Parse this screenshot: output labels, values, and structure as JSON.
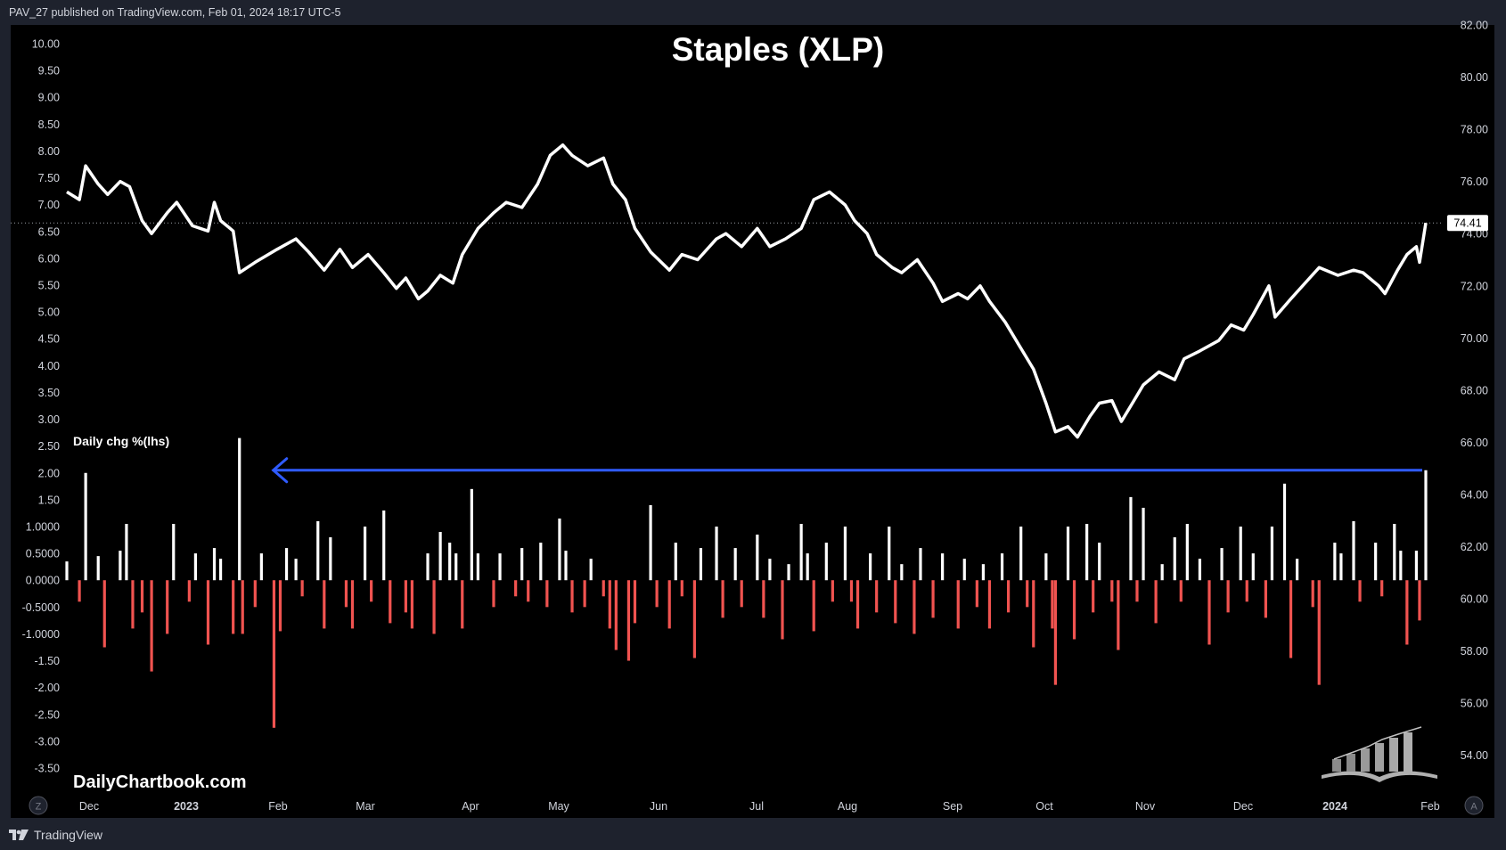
{
  "header": {
    "publish_line": "PAV_27 published on TradingView.com, Feb 01, 2024 18:17 UTC-5"
  },
  "footer": {
    "brand": "TradingView",
    "watermark": "DailyChartbook.com"
  },
  "corner_buttons": {
    "left": "Z",
    "right": "A"
  },
  "colors": {
    "background": "#000000",
    "frame": "#1e222d",
    "price_line": "#ffffff",
    "bar_up": "#ffffff",
    "bar_down": "#f05350",
    "arrow": "#2f5bff",
    "text": "#d1d4dc"
  },
  "chart_data": {
    "type": "line",
    "title": "Staples (XLP)",
    "subtitle": "",
    "x_ticks": [
      "Dec",
      "2023",
      "Feb",
      "Mar",
      "Apr",
      "May",
      "Jun",
      "Jul",
      "Aug",
      "Sep",
      "Oct",
      "Nov",
      "Dec",
      "2024",
      "Feb"
    ],
    "x_range": [
      "2022-11-25",
      "2024-02-01"
    ],
    "right_axis": {
      "ylim": [
        53.0,
        82.0
      ],
      "ticks": [
        "54.00",
        "56.00",
        "58.00",
        "60.00",
        "62.00",
        "64.00",
        "66.00",
        "68.00",
        "70.00",
        "72.00",
        "74.00",
        "76.00",
        "78.00",
        "80.00",
        "82.00"
      ]
    },
    "left_axis": {
      "ylim": [
        -3.5,
        10.0
      ],
      "ticks": [
        "10.00",
        "9.50",
        "9.00",
        "8.50",
        "8.00",
        "7.50",
        "7.00",
        "6.50",
        "6.00",
        "5.50",
        "5.00",
        "4.50",
        "4.00",
        "3.50",
        "3.00",
        "2.50",
        "2.00",
        "1.50",
        "1.0000",
        "0.5000",
        "0.0000",
        "-0.5000",
        "-1.0000",
        "-1.50",
        "-2.00",
        "-2.50",
        "-3.00",
        "-3.50"
      ]
    },
    "last_price": {
      "value": 74.41,
      "label": "74.41"
    },
    "series": [
      {
        "name": "Staples (XLP)",
        "axis": "right",
        "points": [
          [
            "2022-11-25",
            75.6
          ],
          [
            "2022-11-29",
            75.3
          ],
          [
            "2022-12-01",
            76.6
          ],
          [
            "2022-12-05",
            75.9
          ],
          [
            "2022-12-08",
            75.5
          ],
          [
            "2022-12-12",
            76.0
          ],
          [
            "2022-12-15",
            75.8
          ],
          [
            "2022-12-19",
            74.5
          ],
          [
            "2022-12-22",
            74.0
          ],
          [
            "2022-12-27",
            74.8
          ],
          [
            "2022-12-30",
            75.2
          ],
          [
            "2023-01-04",
            74.3
          ],
          [
            "2023-01-09",
            74.1
          ],
          [
            "2023-01-11",
            75.2
          ],
          [
            "2023-01-13",
            74.5
          ],
          [
            "2023-01-17",
            74.1
          ],
          [
            "2023-01-19",
            72.5
          ],
          [
            "2023-01-24",
            72.9
          ],
          [
            "2023-01-31",
            73.4
          ],
          [
            "2023-02-06",
            73.8
          ],
          [
            "2023-02-10",
            73.3
          ],
          [
            "2023-02-15",
            72.6
          ],
          [
            "2023-02-20",
            73.4
          ],
          [
            "2023-02-24",
            72.7
          ],
          [
            "2023-03-01",
            73.2
          ],
          [
            "2023-03-06",
            72.5
          ],
          [
            "2023-03-10",
            71.9
          ],
          [
            "2023-03-13",
            72.3
          ],
          [
            "2023-03-17",
            71.5
          ],
          [
            "2023-03-20",
            71.8
          ],
          [
            "2023-03-24",
            72.4
          ],
          [
            "2023-03-28",
            72.1
          ],
          [
            "2023-03-31",
            73.2
          ],
          [
            "2023-04-05",
            74.2
          ],
          [
            "2023-04-10",
            74.8
          ],
          [
            "2023-04-14",
            75.2
          ],
          [
            "2023-04-19",
            75.0
          ],
          [
            "2023-04-24",
            75.9
          ],
          [
            "2023-04-28",
            77.0
          ],
          [
            "2023-05-02",
            77.4
          ],
          [
            "2023-05-05",
            77.0
          ],
          [
            "2023-05-10",
            76.6
          ],
          [
            "2023-05-15",
            76.9
          ],
          [
            "2023-05-18",
            75.9
          ],
          [
            "2023-05-22",
            75.3
          ],
          [
            "2023-05-25",
            74.2
          ],
          [
            "2023-05-30",
            73.3
          ],
          [
            "2023-06-05",
            72.6
          ],
          [
            "2023-06-09",
            73.2
          ],
          [
            "2023-06-14",
            73.0
          ],
          [
            "2023-06-20",
            73.8
          ],
          [
            "2023-06-23",
            74.0
          ],
          [
            "2023-06-28",
            73.5
          ],
          [
            "2023-07-03",
            74.2
          ],
          [
            "2023-07-07",
            73.5
          ],
          [
            "2023-07-12",
            73.8
          ],
          [
            "2023-07-17",
            74.2
          ],
          [
            "2023-07-21",
            75.3
          ],
          [
            "2023-07-26",
            75.6
          ],
          [
            "2023-07-31",
            75.1
          ],
          [
            "2023-08-03",
            74.5
          ],
          [
            "2023-08-07",
            74.0
          ],
          [
            "2023-08-10",
            73.2
          ],
          [
            "2023-08-15",
            72.7
          ],
          [
            "2023-08-18",
            72.5
          ],
          [
            "2023-08-23",
            73.0
          ],
          [
            "2023-08-28",
            72.1
          ],
          [
            "2023-08-31",
            71.4
          ],
          [
            "2023-09-05",
            71.7
          ],
          [
            "2023-09-08",
            71.5
          ],
          [
            "2023-09-12",
            72.0
          ],
          [
            "2023-09-15",
            71.4
          ],
          [
            "2023-09-20",
            70.6
          ],
          [
            "2023-09-25",
            69.6
          ],
          [
            "2023-09-29",
            68.8
          ],
          [
            "2023-10-03",
            67.5
          ],
          [
            "2023-10-06",
            66.4
          ],
          [
            "2023-10-10",
            66.6
          ],
          [
            "2023-10-13",
            66.2
          ],
          [
            "2023-10-17",
            67.0
          ],
          [
            "2023-10-20",
            67.5
          ],
          [
            "2023-10-24",
            67.6
          ],
          [
            "2023-10-27",
            66.8
          ],
          [
            "2023-10-31",
            67.6
          ],
          [
            "2023-11-03",
            68.2
          ],
          [
            "2023-11-08",
            68.7
          ],
          [
            "2023-11-13",
            68.4
          ],
          [
            "2023-11-16",
            69.2
          ],
          [
            "2023-11-21",
            69.5
          ],
          [
            "2023-11-27",
            69.9
          ],
          [
            "2023-12-01",
            70.5
          ],
          [
            "2023-12-05",
            70.3
          ],
          [
            "2023-12-08",
            70.9
          ],
          [
            "2023-12-13",
            72.0
          ],
          [
            "2023-12-15",
            70.8
          ],
          [
            "2023-12-20",
            71.5
          ],
          [
            "2023-12-26",
            72.3
          ],
          [
            "2023-12-29",
            72.7
          ],
          [
            "2024-01-04",
            72.4
          ],
          [
            "2024-01-09",
            72.6
          ],
          [
            "2024-01-12",
            72.5
          ],
          [
            "2024-01-17",
            72.0
          ],
          [
            "2024-01-19",
            71.7
          ],
          [
            "2024-01-23",
            72.6
          ],
          [
            "2024-01-26",
            73.2
          ],
          [
            "2024-01-29",
            73.5
          ],
          [
            "2024-01-30",
            72.9
          ],
          [
            "2024-02-01",
            74.41
          ]
        ]
      },
      {
        "name": "Daily chg %(lhs)",
        "axis": "left",
        "type": "bar",
        "points": [
          [
            "2022-11-25",
            0.35
          ],
          [
            "2022-11-29",
            -0.4
          ],
          [
            "2022-12-01",
            2.0
          ],
          [
            "2022-12-05",
            0.45
          ],
          [
            "2022-12-07",
            -1.25
          ],
          [
            "2022-12-12",
            0.55
          ],
          [
            "2022-12-14",
            1.05
          ],
          [
            "2022-12-16",
            -0.9
          ],
          [
            "2022-12-19",
            -0.6
          ],
          [
            "2022-12-22",
            -1.7
          ],
          [
            "2022-12-27",
            -1.0
          ],
          [
            "2022-12-29",
            1.05
          ],
          [
            "2023-01-03",
            -0.4
          ],
          [
            "2023-01-05",
            0.5
          ],
          [
            "2023-01-09",
            -1.2
          ],
          [
            "2023-01-11",
            0.6
          ],
          [
            "2023-01-13",
            0.4
          ],
          [
            "2023-01-17",
            -1.0
          ],
          [
            "2023-01-19",
            2.65
          ],
          [
            "2023-01-20",
            -1.0
          ],
          [
            "2023-01-24",
            -0.5
          ],
          [
            "2023-01-26",
            0.5
          ],
          [
            "2023-01-30",
            -2.75
          ],
          [
            "2023-02-01",
            -0.95
          ],
          [
            "2023-02-03",
            0.6
          ],
          [
            "2023-02-06",
            0.4
          ],
          [
            "2023-02-08",
            -0.3
          ],
          [
            "2023-02-13",
            1.1
          ],
          [
            "2023-02-15",
            -0.9
          ],
          [
            "2023-02-17",
            0.8
          ],
          [
            "2023-02-22",
            -0.5
          ],
          [
            "2023-02-24",
            -0.9
          ],
          [
            "2023-02-28",
            1.0
          ],
          [
            "2023-03-02",
            -0.4
          ],
          [
            "2023-03-06",
            1.3
          ],
          [
            "2023-03-08",
            -0.8
          ],
          [
            "2023-03-13",
            -0.6
          ],
          [
            "2023-03-15",
            -0.9
          ],
          [
            "2023-03-20",
            0.5
          ],
          [
            "2023-03-22",
            -1.0
          ],
          [
            "2023-03-24",
            0.9
          ],
          [
            "2023-03-27",
            0.7
          ],
          [
            "2023-03-29",
            0.5
          ],
          [
            "2023-03-31",
            -0.9
          ],
          [
            "2023-04-03",
            1.7
          ],
          [
            "2023-04-05",
            0.5
          ],
          [
            "2023-04-10",
            -0.5
          ],
          [
            "2023-04-12",
            0.5
          ],
          [
            "2023-04-17",
            -0.3
          ],
          [
            "2023-04-19",
            0.6
          ],
          [
            "2023-04-21",
            -0.4
          ],
          [
            "2023-04-25",
            0.7
          ],
          [
            "2023-04-27",
            -0.5
          ],
          [
            "2023-05-01",
            1.15
          ],
          [
            "2023-05-03",
            0.55
          ],
          [
            "2023-05-05",
            -0.6
          ],
          [
            "2023-05-09",
            -0.5
          ],
          [
            "2023-05-11",
            0.4
          ],
          [
            "2023-05-15",
            -0.3
          ],
          [
            "2023-05-17",
            -0.9
          ],
          [
            "2023-05-19",
            -1.3
          ],
          [
            "2023-05-23",
            -1.5
          ],
          [
            "2023-05-25",
            -0.8
          ],
          [
            "2023-05-30",
            1.4
          ],
          [
            "2023-06-01",
            -0.5
          ],
          [
            "2023-06-05",
            -0.9
          ],
          [
            "2023-06-07",
            0.7
          ],
          [
            "2023-06-09",
            -0.3
          ],
          [
            "2023-06-13",
            -1.45
          ],
          [
            "2023-06-15",
            0.6
          ],
          [
            "2023-06-20",
            1.0
          ],
          [
            "2023-06-22",
            -0.7
          ],
          [
            "2023-06-26",
            0.6
          ],
          [
            "2023-06-28",
            -0.5
          ],
          [
            "2023-07-03",
            0.85
          ],
          [
            "2023-07-05",
            -0.7
          ],
          [
            "2023-07-07",
            0.4
          ],
          [
            "2023-07-11",
            -1.1
          ],
          [
            "2023-07-13",
            0.3
          ],
          [
            "2023-07-17",
            1.05
          ],
          [
            "2023-07-19",
            0.5
          ],
          [
            "2023-07-21",
            -0.95
          ],
          [
            "2023-07-25",
            0.7
          ],
          [
            "2023-07-27",
            -0.4
          ],
          [
            "2023-07-31",
            1.0
          ],
          [
            "2023-08-02",
            -0.4
          ],
          [
            "2023-08-04",
            -0.9
          ],
          [
            "2023-08-08",
            0.5
          ],
          [
            "2023-08-10",
            -0.6
          ],
          [
            "2023-08-14",
            1.0
          ],
          [
            "2023-08-16",
            -0.8
          ],
          [
            "2023-08-18",
            0.3
          ],
          [
            "2023-08-22",
            -1.0
          ],
          [
            "2023-08-24",
            0.6
          ],
          [
            "2023-08-28",
            -0.7
          ],
          [
            "2023-08-31",
            0.5
          ],
          [
            "2023-09-05",
            -0.9
          ],
          [
            "2023-09-07",
            0.4
          ],
          [
            "2023-09-11",
            -0.5
          ],
          [
            "2023-09-13",
            0.3
          ],
          [
            "2023-09-15",
            -0.9
          ],
          [
            "2023-09-19",
            0.5
          ],
          [
            "2023-09-21",
            -0.6
          ],
          [
            "2023-09-25",
            1.0
          ],
          [
            "2023-09-27",
            -0.5
          ],
          [
            "2023-09-29",
            -1.25
          ],
          [
            "2023-10-03",
            0.5
          ],
          [
            "2023-10-05",
            -0.9
          ],
          [
            "2023-10-06",
            -1.95
          ],
          [
            "2023-10-10",
            1.0
          ],
          [
            "2023-10-12",
            -1.1
          ],
          [
            "2023-10-16",
            1.05
          ],
          [
            "2023-10-18",
            -0.6
          ],
          [
            "2023-10-20",
            0.7
          ],
          [
            "2023-10-24",
            -0.4
          ],
          [
            "2023-10-26",
            -1.3
          ],
          [
            "2023-10-30",
            1.55
          ],
          [
            "2023-11-01",
            -0.4
          ],
          [
            "2023-11-03",
            1.35
          ],
          [
            "2023-11-07",
            -0.8
          ],
          [
            "2023-11-09",
            0.3
          ],
          [
            "2023-11-13",
            0.8
          ],
          [
            "2023-11-15",
            -0.4
          ],
          [
            "2023-11-17",
            1.05
          ],
          [
            "2023-11-21",
            0.4
          ],
          [
            "2023-11-24",
            -1.2
          ],
          [
            "2023-11-28",
            0.6
          ],
          [
            "2023-11-30",
            -0.6
          ],
          [
            "2023-12-04",
            1.0
          ],
          [
            "2023-12-06",
            -0.4
          ],
          [
            "2023-12-08",
            0.5
          ],
          [
            "2023-12-12",
            -0.7
          ],
          [
            "2023-12-14",
            1.0
          ],
          [
            "2023-12-18",
            1.8
          ],
          [
            "2023-12-20",
            -1.45
          ],
          [
            "2023-12-22",
            0.4
          ],
          [
            "2023-12-27",
            -0.5
          ],
          [
            "2023-12-29",
            -1.95
          ],
          [
            "2024-01-03",
            0.7
          ],
          [
            "2024-01-05",
            0.5
          ],
          [
            "2024-01-09",
            1.1
          ],
          [
            "2024-01-11",
            -0.4
          ],
          [
            "2024-01-16",
            0.7
          ],
          [
            "2024-01-18",
            -0.3
          ],
          [
            "2024-01-22",
            1.05
          ],
          [
            "2024-01-24",
            0.55
          ],
          [
            "2024-01-26",
            -1.2
          ],
          [
            "2024-01-29",
            0.55
          ],
          [
            "2024-01-30",
            -0.75
          ],
          [
            "2024-02-01",
            2.05
          ]
        ]
      }
    ],
    "annotations": [
      {
        "type": "arrow",
        "direction": "left",
        "y": 2.05,
        "axis": "left",
        "x_from": "2024-02-01",
        "x_to": "2023-01-19"
      },
      {
        "type": "dotted_line",
        "y": 74.41,
        "axis": "right"
      }
    ],
    "grid": false,
    "legend": "none"
  }
}
